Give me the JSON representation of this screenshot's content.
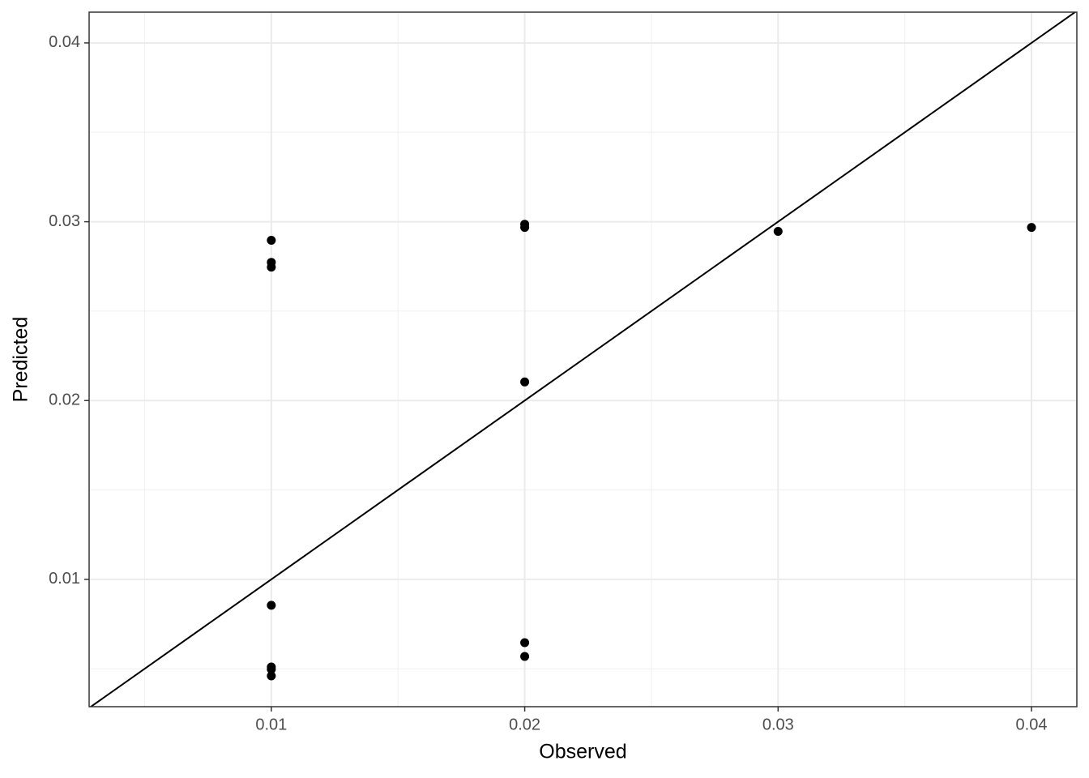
{
  "chart_data": {
    "type": "scatter",
    "x_label": "Observed",
    "y_label": "Predicted",
    "x": [
      0.01,
      0.01,
      0.01,
      0.01,
      0.01,
      0.01,
      0.01,
      0.02,
      0.02,
      0.02,
      0.02,
      0.02,
      0.03,
      0.04
    ],
    "y": [
      0.02896,
      0.02773,
      0.02746,
      0.00855,
      0.0051,
      0.00497,
      0.0046,
      0.02986,
      0.02968,
      0.02104,
      0.00646,
      0.00569,
      0.02946,
      0.02968
    ],
    "color": "#000000",
    "xlim": [
      0.00281,
      0.04179
    ],
    "ylim": [
      0.00288,
      0.04172
    ],
    "xticks": [
      0.01,
      0.02,
      0.03,
      0.04
    ],
    "yticks": [
      0.01,
      0.02,
      0.03,
      0.04
    ],
    "grid": true,
    "identity_line": true
  }
}
